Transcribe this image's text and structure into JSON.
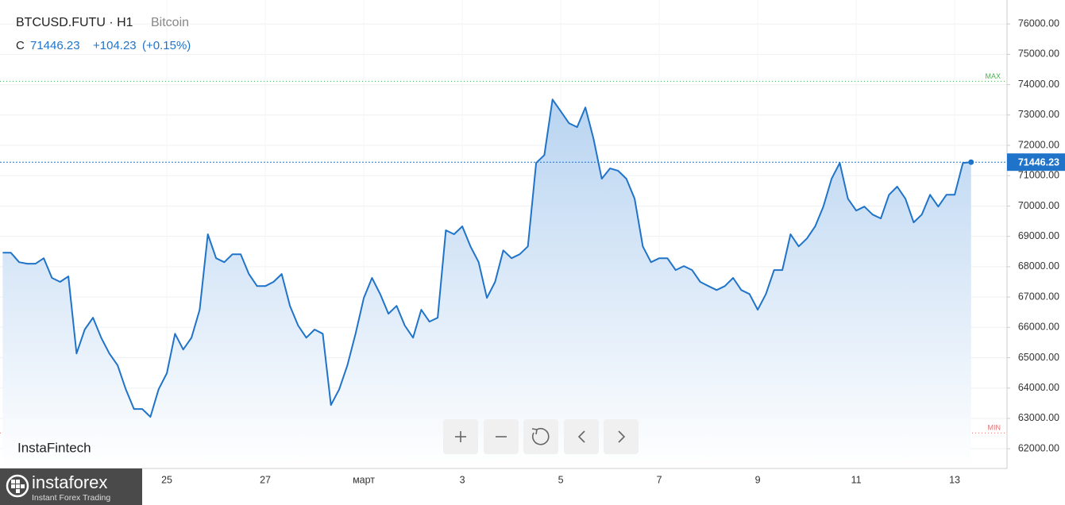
{
  "chart_data": {
    "type": "line",
    "title": "BTCUSD.FUTU · H1",
    "subtitle": "Bitcoin",
    "color": "#1f74c9",
    "categories": [
      null,
      null,
      null,
      null,
      null,
      null,
      null,
      null,
      null,
      null,
      null,
      null,
      null,
      null,
      null,
      null,
      null,
      null,
      null,
      null,
      "25",
      null,
      null,
      null,
      null,
      null,
      null,
      null,
      null,
      null,
      null,
      null,
      "27",
      null,
      null,
      null,
      null,
      null,
      null,
      null,
      null,
      null,
      null,
      null,
      "март",
      null,
      null,
      null,
      null,
      null,
      null,
      null,
      null,
      null,
      null,
      null,
      "3",
      null,
      null,
      null,
      null,
      null,
      null,
      null,
      null,
      null,
      null,
      null,
      "5",
      null,
      null,
      null,
      null,
      null,
      null,
      null,
      null,
      null,
      null,
      null,
      "7",
      null,
      null,
      null,
      null,
      null,
      null,
      null,
      null,
      null,
      null,
      null,
      "9",
      null,
      null,
      null,
      null,
      null,
      null,
      null,
      null,
      null,
      null,
      null,
      "11",
      null,
      null,
      null,
      null,
      null,
      null,
      null,
      null,
      null,
      null,
      null,
      "13",
      null,
      null
    ],
    "values": [
      68460,
      68460,
      68150,
      68100,
      68100,
      68280,
      67630,
      67500,
      67680,
      65140,
      65930,
      66320,
      65660,
      65140,
      64750,
      63960,
      63310,
      63310,
      63050,
      63960,
      64490,
      65790,
      65270,
      65660,
      66580,
      69070,
      68280,
      68150,
      68410,
      68410,
      67760,
      67360,
      67360,
      67500,
      67760,
      66710,
      66060,
      65660,
      65930,
      65790,
      63440,
      63960,
      64750,
      65790,
      66970,
      67630,
      67100,
      66450,
      66710,
      66060,
      65660,
      66580,
      66190,
      66320,
      69200,
      69070,
      69330,
      68670,
      68150,
      66970,
      67500,
      68540,
      68280,
      68410,
      68670,
      71420,
      71680,
      73510,
      73120,
      72730,
      72600,
      73250,
      72210,
      70900,
      71240,
      71160,
      70900,
      70240,
      68670,
      68150,
      68280,
      68280,
      67890,
      68020,
      67890,
      67500,
      67360,
      67230,
      67360,
      67630,
      67230,
      67100,
      66580,
      67100,
      67890,
      67890,
      69070,
      68670,
      68930,
      69330,
      69980,
      70900,
      71420,
      70240,
      69850,
      69980,
      69720,
      69590,
      70370,
      70640,
      70240,
      69460,
      69720,
      70370,
      69980,
      70370,
      70370,
      71420,
      71446.23
    ],
    "ylim": [
      61350,
      76790
    ],
    "yticks": [
      {
        "value": 62000,
        "label": "62000.00"
      },
      {
        "value": 63000,
        "label": "63000.00"
      },
      {
        "value": 64000,
        "label": "64000.00"
      },
      {
        "value": 65000,
        "label": "65000.00"
      },
      {
        "value": 66000,
        "label": "66000.00"
      },
      {
        "value": 67000,
        "label": "67000.00"
      },
      {
        "value": 68000,
        "label": "68000.00"
      },
      {
        "value": 69000,
        "label": "69000.00"
      },
      {
        "value": 70000,
        "label": "70000.00"
      },
      {
        "value": 71000,
        "label": "71000.00"
      },
      {
        "value": 72000,
        "label": "72000.00"
      },
      {
        "value": 73000,
        "label": "73000.00"
      },
      {
        "value": 74000,
        "label": "74000.00"
      },
      {
        "value": 75000,
        "label": "75000.00"
      },
      {
        "value": 76000,
        "label": "76000.00"
      }
    ],
    "grid": true,
    "last_price": {
      "label": "C",
      "value": 71446.23,
      "change": "+104.23",
      "change_pct": "(+0.15%)"
    },
    "reference_lines": [
      {
        "label": "MAX",
        "value": 74110,
        "color": "#4caf50"
      },
      {
        "label": "MIN",
        "value": 62520,
        "color": "#e57373"
      }
    ],
    "watermark": "InstaFintech",
    "branding": {
      "name": "instaforex",
      "tagline": "Instant Forex Trading"
    }
  }
}
